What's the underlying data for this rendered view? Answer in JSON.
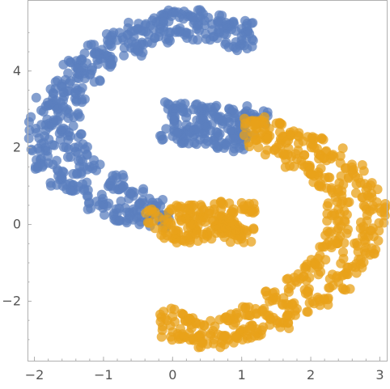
{
  "chart_data": {
    "type": "scatter",
    "title": "",
    "xlabel": "",
    "ylabel": "",
    "xlim": [
      -2.1,
      3.1
    ],
    "ylim": [
      -3.55,
      5.85
    ],
    "grid": false,
    "x_ticks": [
      -2,
      -1,
      0,
      1,
      2,
      3
    ],
    "x_tick_labels": [
      "−2",
      "−1",
      "0",
      "1",
      "2",
      "3"
    ],
    "y_ticks": [
      -2,
      0,
      2,
      4
    ],
    "y_tick_labels": [
      "−2",
      "0",
      "2",
      "4"
    ],
    "colors": {
      "cluster_a": "#5b7fbf",
      "cluster_b": "#e8a11a"
    },
    "point_opacity": 0.75,
    "series": [
      {
        "color": "#5b7fbf",
        "description_points": "upper crescent opening right plus a short arm at x 0 to 1.2, y 2 to 3",
        "values": [
          [
            1.0,
            5.1
          ],
          [
            0.7,
            5.3
          ],
          [
            0.4,
            5.4
          ],
          [
            0.1,
            5.4
          ],
          [
            -0.2,
            5.3
          ],
          [
            -0.5,
            5.1
          ],
          [
            -0.8,
            4.8
          ],
          [
            -1.1,
            4.5
          ],
          [
            -1.4,
            4.1
          ],
          [
            -1.6,
            3.6
          ],
          [
            -1.8,
            3.1
          ],
          [
            -1.9,
            2.6
          ],
          [
            -1.9,
            2.1
          ],
          [
            -1.8,
            1.6
          ],
          [
            -1.6,
            1.2
          ],
          [
            -1.4,
            0.9
          ],
          [
            -1.1,
            0.6
          ],
          [
            -0.8,
            0.3
          ],
          [
            -0.5,
            0.2
          ],
          [
            -0.2,
            0.1
          ],
          [
            1.0,
            4.7
          ],
          [
            0.6,
            4.9
          ],
          [
            0.2,
            5.0
          ],
          [
            -0.2,
            4.9
          ],
          [
            -0.6,
            4.6
          ],
          [
            -0.9,
            4.3
          ],
          [
            -1.2,
            3.9
          ],
          [
            -1.4,
            3.4
          ],
          [
            -1.5,
            2.9
          ],
          [
            -1.5,
            2.4
          ],
          [
            -1.4,
            1.9
          ],
          [
            -1.2,
            1.5
          ],
          [
            -0.9,
            1.1
          ],
          [
            -0.6,
            0.8
          ],
          [
            -0.3,
            0.5
          ],
          [
            0.0,
            3.0
          ],
          [
            0.3,
            3.0
          ],
          [
            0.6,
            2.9
          ],
          [
            0.9,
            2.9
          ],
          [
            1.2,
            2.8
          ],
          [
            0.0,
            2.3
          ],
          [
            0.3,
            2.3
          ],
          [
            0.6,
            2.2
          ],
          [
            0.9,
            2.1
          ],
          [
            0.2,
            2.6
          ],
          [
            0.5,
            2.6
          ],
          [
            0.8,
            2.5
          ],
          [
            1.0,
            2.4
          ]
        ]
      },
      {
        "color": "#e8a11a",
        "description_points": "lower crescent opening left plus a short arm at x -0.2 to 1, y -0.3 to 0.4",
        "values": [
          [
            0.0,
            -2.8
          ],
          [
            0.3,
            -3.0
          ],
          [
            0.6,
            -3.0
          ],
          [
            0.9,
            -2.9
          ],
          [
            1.2,
            -2.8
          ],
          [
            1.5,
            -2.5
          ],
          [
            1.8,
            -2.2
          ],
          [
            2.1,
            -1.9
          ],
          [
            2.4,
            -1.5
          ],
          [
            2.6,
            -1.1
          ],
          [
            2.8,
            -0.6
          ],
          [
            2.9,
            -0.1
          ],
          [
            2.9,
            0.4
          ],
          [
            2.8,
            0.9
          ],
          [
            2.6,
            1.4
          ],
          [
            2.3,
            1.8
          ],
          [
            2.0,
            2.1
          ],
          [
            1.7,
            2.3
          ],
          [
            1.4,
            2.5
          ],
          [
            1.2,
            2.7
          ],
          [
            0.0,
            -2.4
          ],
          [
            0.4,
            -2.6
          ],
          [
            0.8,
            -2.5
          ],
          [
            1.2,
            -2.2
          ],
          [
            1.5,
            -1.9
          ],
          [
            1.8,
            -1.5
          ],
          [
            2.1,
            -1.1
          ],
          [
            2.3,
            -0.6
          ],
          [
            2.4,
            -0.1
          ],
          [
            2.4,
            0.4
          ],
          [
            2.3,
            0.9
          ],
          [
            2.1,
            1.3
          ],
          [
            1.8,
            1.7
          ],
          [
            1.5,
            2.0
          ],
          [
            1.2,
            2.2
          ],
          [
            -0.2,
            0.2
          ],
          [
            0.1,
            0.3
          ],
          [
            0.4,
            0.3
          ],
          [
            0.7,
            0.4
          ],
          [
            1.0,
            0.4
          ],
          [
            -0.1,
            -0.2
          ],
          [
            0.2,
            -0.3
          ],
          [
            0.5,
            -0.2
          ],
          [
            0.8,
            -0.2
          ],
          [
            1.0,
            -0.3
          ],
          [
            0.3,
            0.0
          ],
          [
            0.6,
            0.1
          ],
          [
            0.9,
            0.0
          ]
        ]
      }
    ]
  }
}
